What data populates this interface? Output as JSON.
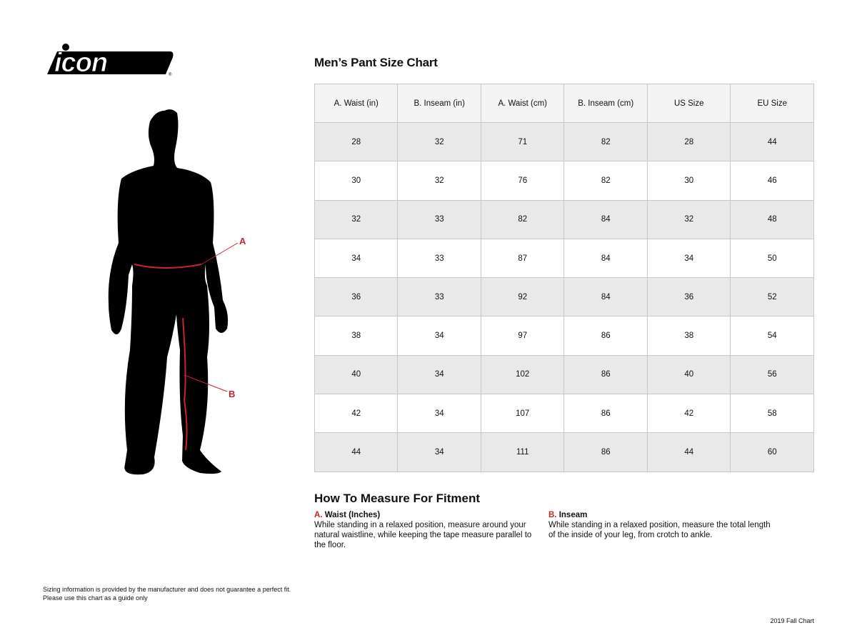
{
  "logo": {
    "text": "icon"
  },
  "chart": {
    "title": "Men’s Pant Size Chart",
    "columns": [
      "A. Waist (in)",
      "B. Inseam (in)",
      "A. Waist (cm)",
      "B. Inseam (cm)",
      "US Size",
      "EU Size"
    ],
    "rows": [
      [
        "28",
        "32",
        "71",
        "82",
        "28",
        "44"
      ],
      [
        "30",
        "32",
        "76",
        "82",
        "30",
        "46"
      ],
      [
        "32",
        "33",
        "82",
        "84",
        "32",
        "48"
      ],
      [
        "34",
        "33",
        "87",
        "84",
        "34",
        "50"
      ],
      [
        "36",
        "33",
        "92",
        "84",
        "36",
        "52"
      ],
      [
        "38",
        "34",
        "97",
        "86",
        "38",
        "54"
      ],
      [
        "40",
        "34",
        "102",
        "86",
        "40",
        "56"
      ],
      [
        "42",
        "34",
        "107",
        "86",
        "42",
        "58"
      ],
      [
        "44",
        "34",
        "111",
        "86",
        "44",
        "60"
      ]
    ]
  },
  "figure": {
    "label_a": "A",
    "label_b": "B",
    "accent": "#c8242f"
  },
  "howto": {
    "title": "How To Measure For Fitment",
    "a": {
      "letter": "A.",
      "heading": "Waist (Inches)",
      "text": "While standing in a relaxed position, measure around your natural waistline, while keeping the tape measure parallel to the floor."
    },
    "b": {
      "letter": "B.",
      "heading": "Inseam",
      "text": "While standing in a relaxed position, measure the total length of the inside of your leg, from crotch to ankle."
    }
  },
  "disclaimer": [
    "Sizing information is provided by the manufacturer and does not guarantee a perfect fit.",
    "Please use this chart as a guide only"
  ],
  "footer": "2019 Fall Chart"
}
